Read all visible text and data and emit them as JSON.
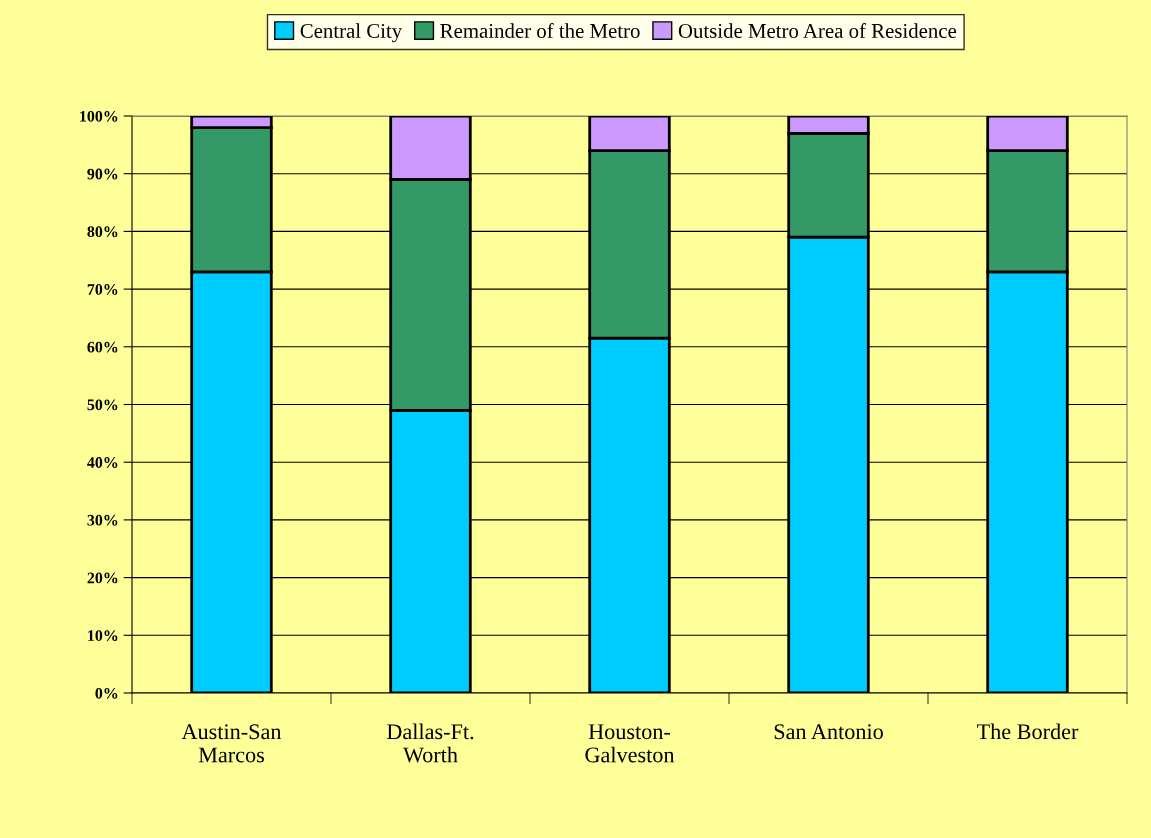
{
  "chart_data": {
    "type": "bar",
    "stacked": true,
    "categories": [
      "Austin-San\nMarcos",
      "Dallas-Ft.\nWorth",
      "Houston-\nGalveston",
      "San Antonio",
      "The Border"
    ],
    "series": [
      {
        "name": "Central City",
        "color": "#00ccff",
        "values": [
          73,
          49,
          61.5,
          79,
          73
        ]
      },
      {
        "name": "Remainder of the Metro",
        "color": "#339966",
        "values": [
          25,
          40,
          32.5,
          18,
          21
        ]
      },
      {
        "name": "Outside Metro Area of Residence",
        "color": "#cc99ff",
        "values": [
          2,
          11,
          6,
          3,
          6
        ]
      }
    ],
    "ylim": [
      0,
      100
    ],
    "yticks": [
      {
        "value": 0,
        "label": "0%"
      },
      {
        "value": 10,
        "label": "10%"
      },
      {
        "value": 20,
        "label": "20%"
      },
      {
        "value": 30,
        "label": "30%"
      },
      {
        "value": 40,
        "label": "40%"
      },
      {
        "value": 50,
        "label": "50%"
      },
      {
        "value": 60,
        "label": "60%"
      },
      {
        "value": 70,
        "label": "70%"
      },
      {
        "value": 80,
        "label": "80%"
      },
      {
        "value": 90,
        "label": "90%"
      },
      {
        "value": 100,
        "label": "100%"
      }
    ],
    "grid": "y",
    "legend": "top"
  }
}
